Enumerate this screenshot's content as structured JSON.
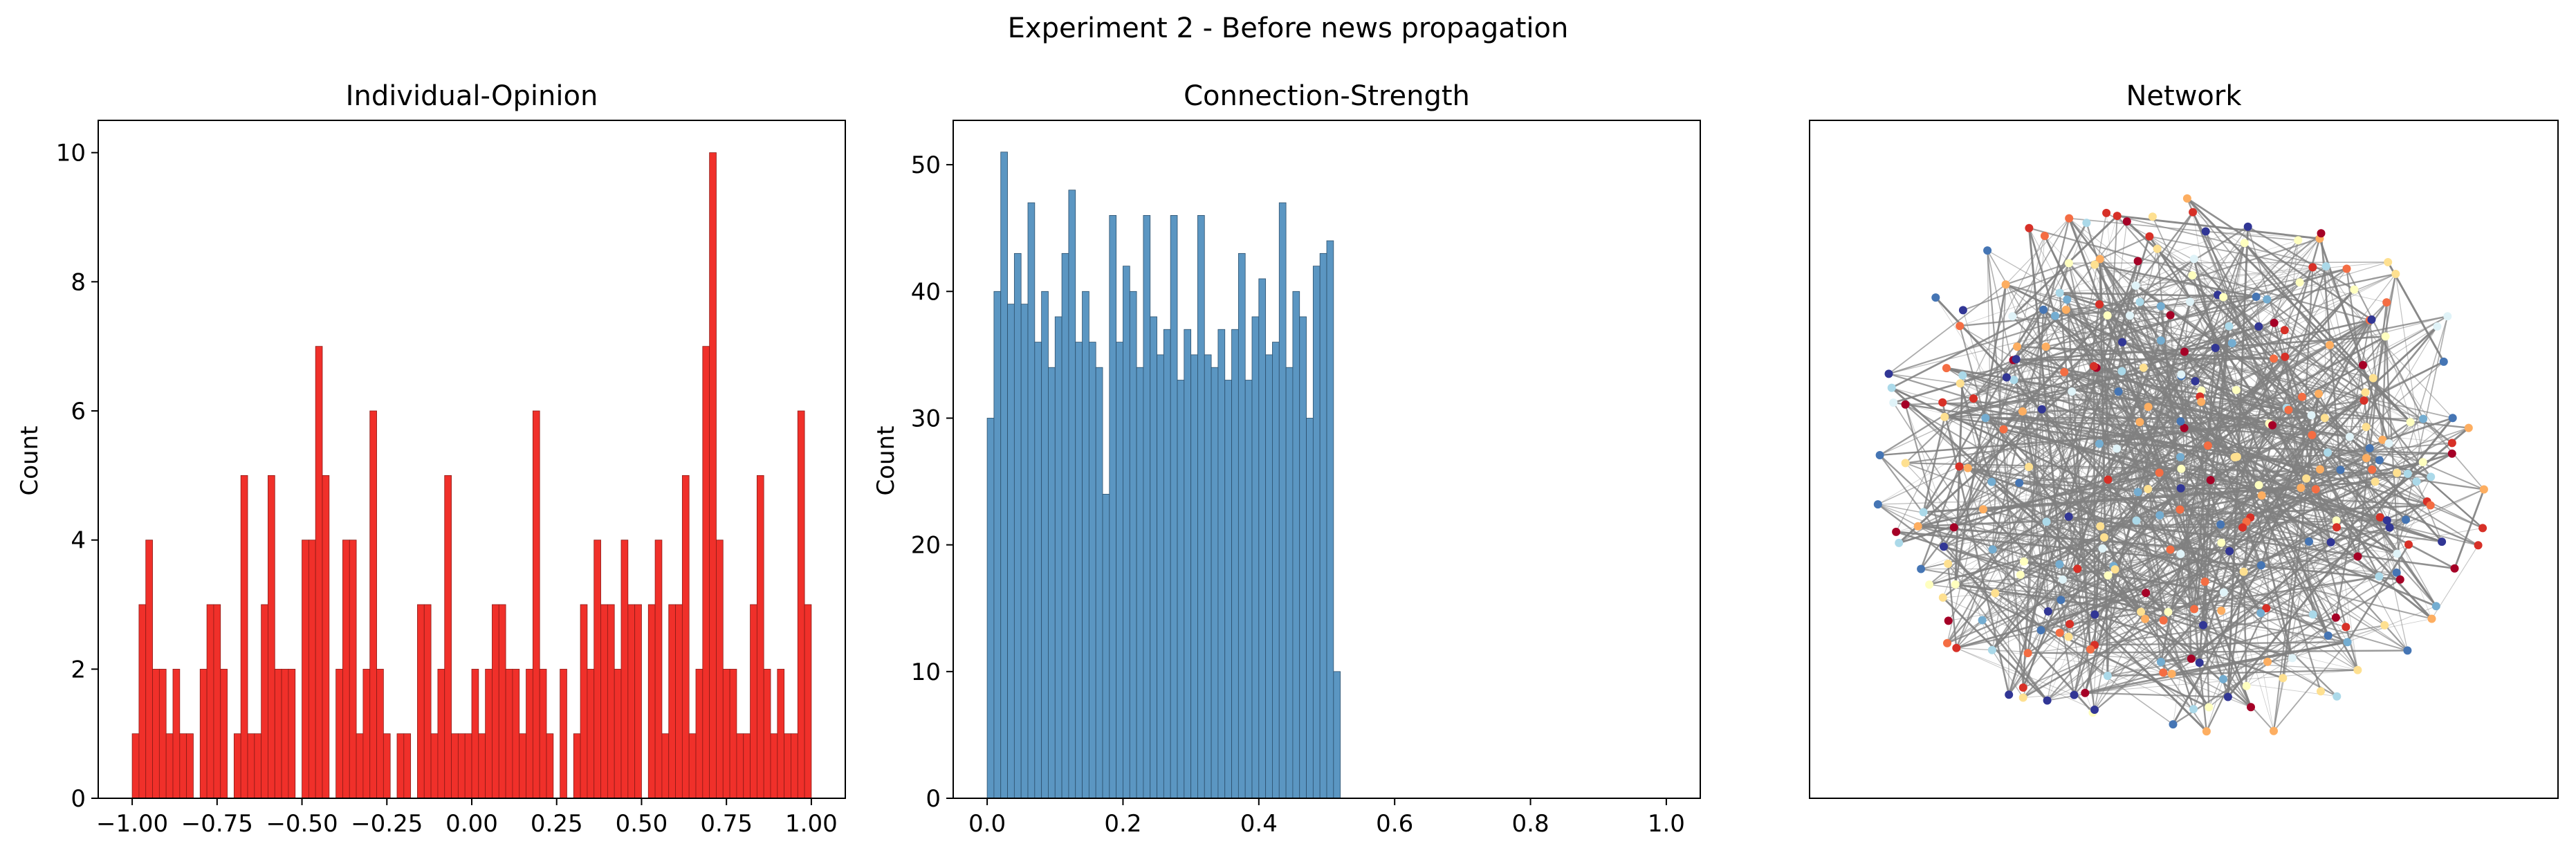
{
  "figure": {
    "suptitle": "Experiment 2 - Before news propagation"
  },
  "chart_data": [
    {
      "type": "bar",
      "title": "Individual-Opinion",
      "xlabel": "",
      "ylabel": "Count",
      "color": "#f0302a",
      "edge_color": "#8b1a16",
      "xlim": [
        -1.1,
        1.1
      ],
      "ylim": [
        0,
        10.5
      ],
      "xticks": [
        -1.0,
        -0.75,
        -0.5,
        -0.25,
        0.0,
        0.25,
        0.5,
        0.75,
        1.0
      ],
      "xtick_labels": [
        "−1.00",
        "−0.75",
        "−0.50",
        "−0.25",
        "0.00",
        "0.25",
        "0.50",
        "0.75",
        "1.00"
      ],
      "yticks": [
        0,
        2,
        4,
        6,
        8,
        10
      ],
      "ytick_labels": [
        "0",
        "2",
        "4",
        "6",
        "8",
        "10"
      ],
      "bin_start": -1.0,
      "bin_width": 0.02,
      "values": [
        1,
        3,
        4,
        2,
        2,
        1,
        2,
        1,
        1,
        0,
        2,
        3,
        3,
        2,
        0,
        1,
        5,
        1,
        1,
        3,
        5,
        2,
        2,
        2,
        0,
        4,
        4,
        7,
        5,
        0,
        2,
        4,
        4,
        1,
        2,
        6,
        2,
        1,
        0,
        1,
        1,
        0,
        3,
        3,
        1,
        2,
        5,
        1,
        1,
        1,
        2,
        1,
        2,
        3,
        3,
        2,
        2,
        1,
        2,
        6,
        2,
        1,
        0,
        2,
        0,
        1,
        3,
        2,
        4,
        3,
        3,
        2,
        4,
        3,
        3,
        0,
        3,
        4,
        1,
        3,
        3,
        5,
        1,
        2,
        7,
        10,
        4,
        2,
        2,
        1,
        1,
        3,
        5,
        2,
        1,
        2,
        1,
        1,
        6,
        3
      ]
    },
    {
      "type": "bar",
      "title": "Connection-Strength",
      "xlabel": "",
      "ylabel": "Count",
      "color": "#5b96c2",
      "edge_color": "#2c4f6b",
      "xlim": [
        -0.05,
        1.05
      ],
      "ylim": [
        0,
        53.5
      ],
      "xticks": [
        0.0,
        0.2,
        0.4,
        0.6,
        0.8,
        1.0
      ],
      "xtick_labels": [
        "0.0",
        "0.2",
        "0.4",
        "0.6",
        "0.8",
        "1.0"
      ],
      "yticks": [
        0,
        10,
        20,
        30,
        40,
        50
      ],
      "ytick_labels": [
        "0",
        "10",
        "20",
        "30",
        "40",
        "50"
      ],
      "bin_start": 0.0,
      "bin_width": 0.01,
      "values": [
        30,
        40,
        51,
        39,
        43,
        39,
        47,
        36,
        40,
        34,
        38,
        43,
        48,
        36,
        40,
        36,
        34,
        24,
        46,
        36,
        42,
        40,
        34,
        46,
        38,
        35,
        37,
        46,
        33,
        37,
        35,
        46,
        35,
        34,
        37,
        33,
        37,
        43,
        33,
        38,
        41,
        35,
        36,
        47,
        34,
        40,
        38,
        30,
        42,
        43,
        44,
        10
      ]
    },
    {
      "type": "network",
      "title": "Network",
      "edge_color": "#808080",
      "node_colors": [
        "#a50026",
        "#d73027",
        "#f46d43",
        "#fdae61",
        "#fee090",
        "#ffffbf",
        "#e0f3f8",
        "#abd9e9",
        "#74add1",
        "#4575b4",
        "#313695"
      ],
      "node_count": 300,
      "edge_count": 900,
      "show_axes_ticks": false
    }
  ]
}
